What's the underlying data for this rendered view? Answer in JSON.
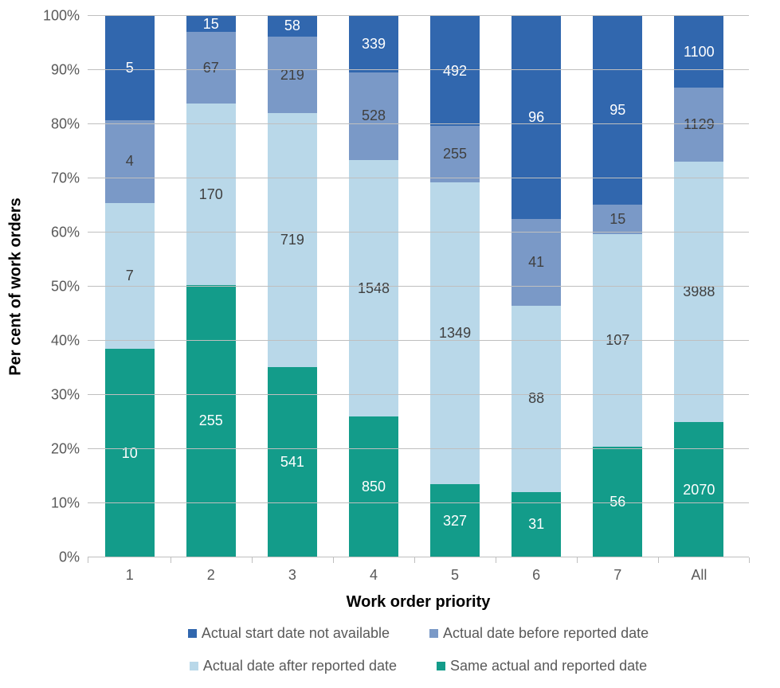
{
  "chart": {
    "type": "stacked-bar-100pct",
    "background_color": "#ffffff",
    "grid_color": "#bfbfbf",
    "tick_label_color": "#595959",
    "tick_label_fontsize": 18,
    "axis_title_fontsize": 20,
    "axis_title_fontweight": "bold",
    "value_label_color": "#ffffff",
    "value_label_fontsize": 18,
    "x_axis_title": "Work order priority",
    "y_axis_title": "Per cent of work orders",
    "y_ticks": [
      0,
      10,
      20,
      30,
      40,
      50,
      60,
      70,
      80,
      90,
      100
    ],
    "y_tick_suffix": "%",
    "ylim": [
      0,
      100
    ],
    "bar_width_pct": 7.5,
    "bar_gap_pct": 4.8,
    "bar_left_offset_pct": 2.6,
    "categories": [
      "1",
      "2",
      "3",
      "4",
      "5",
      "6",
      "7",
      "All"
    ],
    "series": [
      {
        "key": "same",
        "label": "Same actual and reported date",
        "color": "#139c8a"
      },
      {
        "key": "after",
        "label": "Actual date after reported date",
        "color": "#b9d8e9"
      },
      {
        "key": "before",
        "label": "Actual date before reported date",
        "color": "#7a99c7"
      },
      {
        "key": "na",
        "label": "Actual start date not available",
        "color": "#3167ae"
      }
    ],
    "legend_order": [
      "na",
      "before",
      "after",
      "same"
    ],
    "legend_row_break_after": 2,
    "data": [
      {
        "category": "1",
        "segments": {
          "same": {
            "value": 10,
            "pct": 38.5,
            "text_color": "#ffffff"
          },
          "after": {
            "value": 7,
            "pct": 26.9,
            "text_color": "#404040"
          },
          "before": {
            "value": 4,
            "pct": 15.4,
            "text_color": "#404040"
          },
          "na": {
            "value": 5,
            "pct": 19.2,
            "text_color": "#ffffff"
          }
        }
      },
      {
        "category": "2",
        "segments": {
          "same": {
            "value": 255,
            "pct": 50.3,
            "text_color": "#ffffff"
          },
          "after": {
            "value": 170,
            "pct": 33.5,
            "text_color": "#404040"
          },
          "before": {
            "value": 67,
            "pct": 13.2,
            "text_color": "#404040"
          },
          "na": {
            "value": 15,
            "pct": 3.0,
            "text_color": "#ffffff"
          }
        }
      },
      {
        "category": "3",
        "segments": {
          "same": {
            "value": 541,
            "pct": 35.2,
            "text_color": "#ffffff"
          },
          "after": {
            "value": 719,
            "pct": 46.8,
            "text_color": "#404040"
          },
          "before": {
            "value": 219,
            "pct": 14.2,
            "text_color": "#404040"
          },
          "na": {
            "value": 58,
            "pct": 3.8,
            "text_color": "#ffffff"
          }
        }
      },
      {
        "category": "4",
        "segments": {
          "same": {
            "value": 850,
            "pct": 26.0,
            "text_color": "#ffffff"
          },
          "after": {
            "value": 1548,
            "pct": 47.4,
            "text_color": "#404040"
          },
          "before": {
            "value": 528,
            "pct": 16.2,
            "text_color": "#404040"
          },
          "na": {
            "value": 339,
            "pct": 10.4,
            "text_color": "#ffffff"
          }
        }
      },
      {
        "category": "5",
        "segments": {
          "same": {
            "value": 327,
            "pct": 13.5,
            "text_color": "#ffffff"
          },
          "after": {
            "value": 1349,
            "pct": 55.7,
            "text_color": "#404040"
          },
          "before": {
            "value": 255,
            "pct": 10.5,
            "text_color": "#404040"
          },
          "na": {
            "value": 492,
            "pct": 20.3,
            "text_color": "#ffffff"
          }
        }
      },
      {
        "category": "6",
        "segments": {
          "same": {
            "value": 31,
            "pct": 12.1,
            "text_color": "#ffffff"
          },
          "after": {
            "value": 88,
            "pct": 34.4,
            "text_color": "#404040"
          },
          "before": {
            "value": 41,
            "pct": 16.0,
            "text_color": "#404040"
          },
          "na": {
            "value": 96,
            "pct": 37.5,
            "text_color": "#ffffff"
          }
        }
      },
      {
        "category": "7",
        "segments": {
          "same": {
            "value": 56,
            "pct": 20.5,
            "text_color": "#ffffff"
          },
          "after": {
            "value": 107,
            "pct": 39.2,
            "text_color": "#404040"
          },
          "before": {
            "value": 15,
            "pct": 5.5,
            "text_color": "#404040"
          },
          "na": {
            "value": 95,
            "pct": 34.8,
            "text_color": "#ffffff"
          }
        }
      },
      {
        "category": "All",
        "segments": {
          "same": {
            "value": 2070,
            "pct": 25.0,
            "text_color": "#ffffff"
          },
          "after": {
            "value": 3988,
            "pct": 48.1,
            "text_color": "#404040"
          },
          "before": {
            "value": 1129,
            "pct": 13.6,
            "text_color": "#404040"
          },
          "na": {
            "value": 1100,
            "pct": 13.3,
            "text_color": "#ffffff"
          }
        }
      }
    ]
  }
}
